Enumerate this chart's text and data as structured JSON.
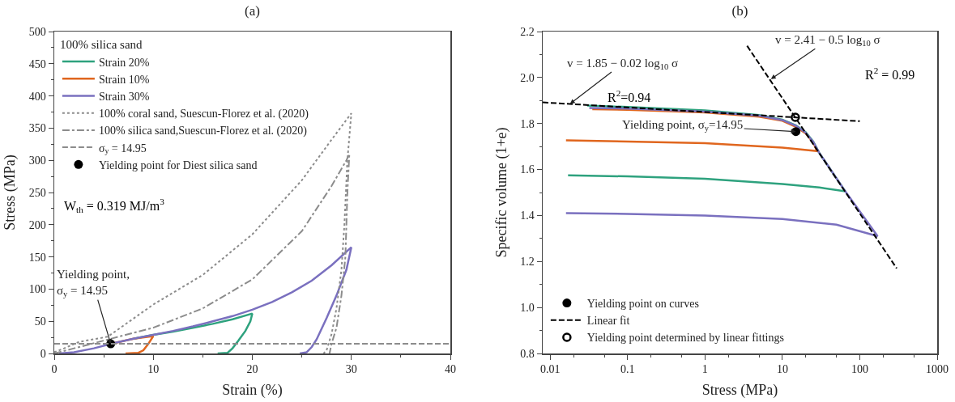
{
  "chart_data": [
    {
      "type": "line",
      "title": "(a)",
      "xlabel": "Strain (%)",
      "ylabel": "Stress (MPa)",
      "legend_title": "100% silica sand",
      "xlim": [
        0,
        40
      ],
      "xticks": [
        0,
        10,
        20,
        30,
        40
      ],
      "ylim": [
        0,
        500
      ],
      "yticks": [
        0,
        50,
        100,
        150,
        200,
        250,
        300,
        350,
        400,
        450,
        500
      ],
      "grid": false,
      "legend": "top left",
      "series": [
        {
          "name": "Strain 20%",
          "color": "#2ea27e",
          "line_style": "solid",
          "x": [
            8,
            10,
            12,
            14,
            16,
            18,
            20,
            19.8,
            19.3,
            18.6,
            18,
            17.5,
            16.5
          ],
          "values": [
            23,
            29,
            34,
            40,
            46,
            53,
            62,
            50,
            35,
            20,
            8,
            1,
            0
          ]
        },
        {
          "name": "Strain 10%",
          "color": "#e0661e",
          "line_style": "solid",
          "x": [
            6,
            8,
            10,
            9.5,
            9,
            8.5,
            7.2
          ],
          "values": [
            16,
            23,
            27,
            15,
            5,
            1,
            0
          ]
        },
        {
          "name": "Strain 30%",
          "color": "#7a70bf",
          "line_style": "solid",
          "x": [
            0.5,
            2,
            4,
            6,
            8,
            10,
            12,
            14,
            16,
            18,
            20,
            22,
            24,
            26,
            28,
            30,
            29.5,
            28.5,
            27.5,
            26.5,
            26,
            25.5,
            24.8
          ],
          "values": [
            0,
            2,
            8,
            16,
            23,
            29,
            35,
            42,
            50,
            58,
            68,
            80,
            95,
            113,
            137,
            165,
            130,
            90,
            55,
            22,
            10,
            2,
            0
          ]
        },
        {
          "name": "100% coral sand, Suescun-Florez et al. (2020)",
          "color": "#8c8c8c",
          "line_style": "dotted",
          "x": [
            0,
            1,
            2.5,
            5.4,
            10,
            15,
            20,
            25,
            28,
            30,
            29.6,
            29.3,
            29,
            28.5,
            28,
            27.5,
            27.2
          ],
          "values": [
            2,
            8,
            18,
            26,
            76,
            122,
            185,
            269,
            332,
            373,
            300,
            200,
            130,
            70,
            30,
            5,
            0
          ]
        },
        {
          "name": "100% silica sand,Suescun-Florez et al. (2020)",
          "color": "#8c8c8c",
          "line_style": "dashdot",
          "x": [
            0,
            2,
            5,
            10,
            15,
            20,
            25,
            28,
            29.5,
            29.8,
            29.6,
            29.4,
            29,
            28.5,
            28,
            27.8
          ],
          "values": [
            0,
            8,
            20,
            40,
            70,
            115,
            190,
            260,
            300,
            310,
            250,
            150,
            90,
            40,
            15,
            0
          ]
        },
        {
          "type": "scatter",
          "name": "Yielding point for Diest silica sand",
          "color": "#000000",
          "marker": "circle",
          "x": [
            5.7
          ],
          "values": [
            14.95
          ]
        }
      ],
      "ref_lines": [
        {
          "axis": "y",
          "value": 14.95,
          "label": "σ$_{y}$ = 14.95",
          "color": "#8c8c8c",
          "line_style": "dashed"
        }
      ],
      "annotations": [
        "W$_{th}$ = 0.319 MJ/m$^{3}$",
        {
          "text": "Yielding point,\nσ$_{y}$ = 14.95",
          "x": 5.7,
          "y": 14.95
        }
      ]
    },
    {
      "type": "line",
      "title": "(b)",
      "xlabel": "Stress (MPa)",
      "ylabel": "Specific volume (1+e)",
      "log": "x",
      "xlim": [
        0.008,
        1000
      ],
      "xticks": [
        0.01,
        0.1,
        1,
        10,
        100,
        1000
      ],
      "ylim": [
        0.8,
        2.2
      ],
      "yticks": [
        0.8,
        {
          "value": 1,
          "label": "1.0"
        },
        1.2,
        1.4,
        1.6,
        1.8,
        {
          "value": 2,
          "label": "2.0"
        },
        2.2
      ],
      "grid": false,
      "legend": "bottom left",
      "series": [
        {
          "color": "#2ea27e",
          "line_style": "solid",
          "x": [
            0.03,
            0.1,
            1,
            5,
            10,
            15,
            20,
            25,
            30,
            65,
            30,
            10,
            1,
            0.1,
            0.017
          ],
          "values": [
            1.878,
            1.872,
            1.857,
            1.837,
            1.817,
            1.792,
            1.762,
            1.722,
            1.672,
            1.505,
            1.522,
            1.537,
            1.56,
            1.57,
            1.575
          ]
        },
        {
          "color": "#e0661e",
          "line_style": "solid",
          "x": [
            0.035,
            0.1,
            1,
            5,
            10,
            15,
            20,
            25,
            28,
            10,
            1,
            0.1,
            0.016
          ],
          "values": [
            1.862,
            1.86,
            1.848,
            1.83,
            1.812,
            1.785,
            1.757,
            1.717,
            1.68,
            1.695,
            1.715,
            1.722,
            1.727
          ]
        },
        {
          "color": "#7a70bf",
          "line_style": "solid",
          "x": [
            0.032,
            0.1,
            1,
            5,
            10,
            15,
            20,
            25,
            30,
            65,
            170,
            50,
            10,
            1,
            0.1,
            0.016
          ],
          "values": [
            1.868,
            1.865,
            1.852,
            1.834,
            1.815,
            1.79,
            1.76,
            1.72,
            1.672,
            1.505,
            1.31,
            1.36,
            1.385,
            1.4,
            1.407,
            1.41
          ]
        },
        {
          "type": "scatter",
          "name": "Yielding point on curves",
          "color": "#000000",
          "marker": "circle",
          "x": [
            14.95
          ],
          "values": [
            1.765
          ]
        },
        {
          "name": "Linear fit",
          "color": "#000000",
          "line_style": "dashed",
          "x": [
            0.008,
            100
          ],
          "values": [
            1.892,
            1.81
          ]
        },
        {
          "color": "#000000",
          "line_style": "dashed",
          "x": [
            3.5,
            300
          ],
          "values": [
            2.138,
            1.17
          ]
        },
        {
          "type": "scatter",
          "name": "Yielding point determined by linear fittings",
          "color": "#000000",
          "marker": "circle-open",
          "x": [
            14.7
          ],
          "values": [
            1.827
          ]
        }
      ],
      "annotations": [
        {
          "text": "v = 1.85 − 0.02 log$_{10}$ σ",
          "x": 0.018,
          "y": 1.885
        },
        "R$^{2}$=0.94",
        {
          "text": "v = 2.41 − 0.5 log$_{10}$ σ",
          "x": 7.1,
          "y": 1.993
        },
        "R$^{2}$ = 0.99",
        {
          "text": "Yielding point, σ$_{y}$=14.95",
          "x": 14.95,
          "y": 1.765
        }
      ]
    }
  ]
}
